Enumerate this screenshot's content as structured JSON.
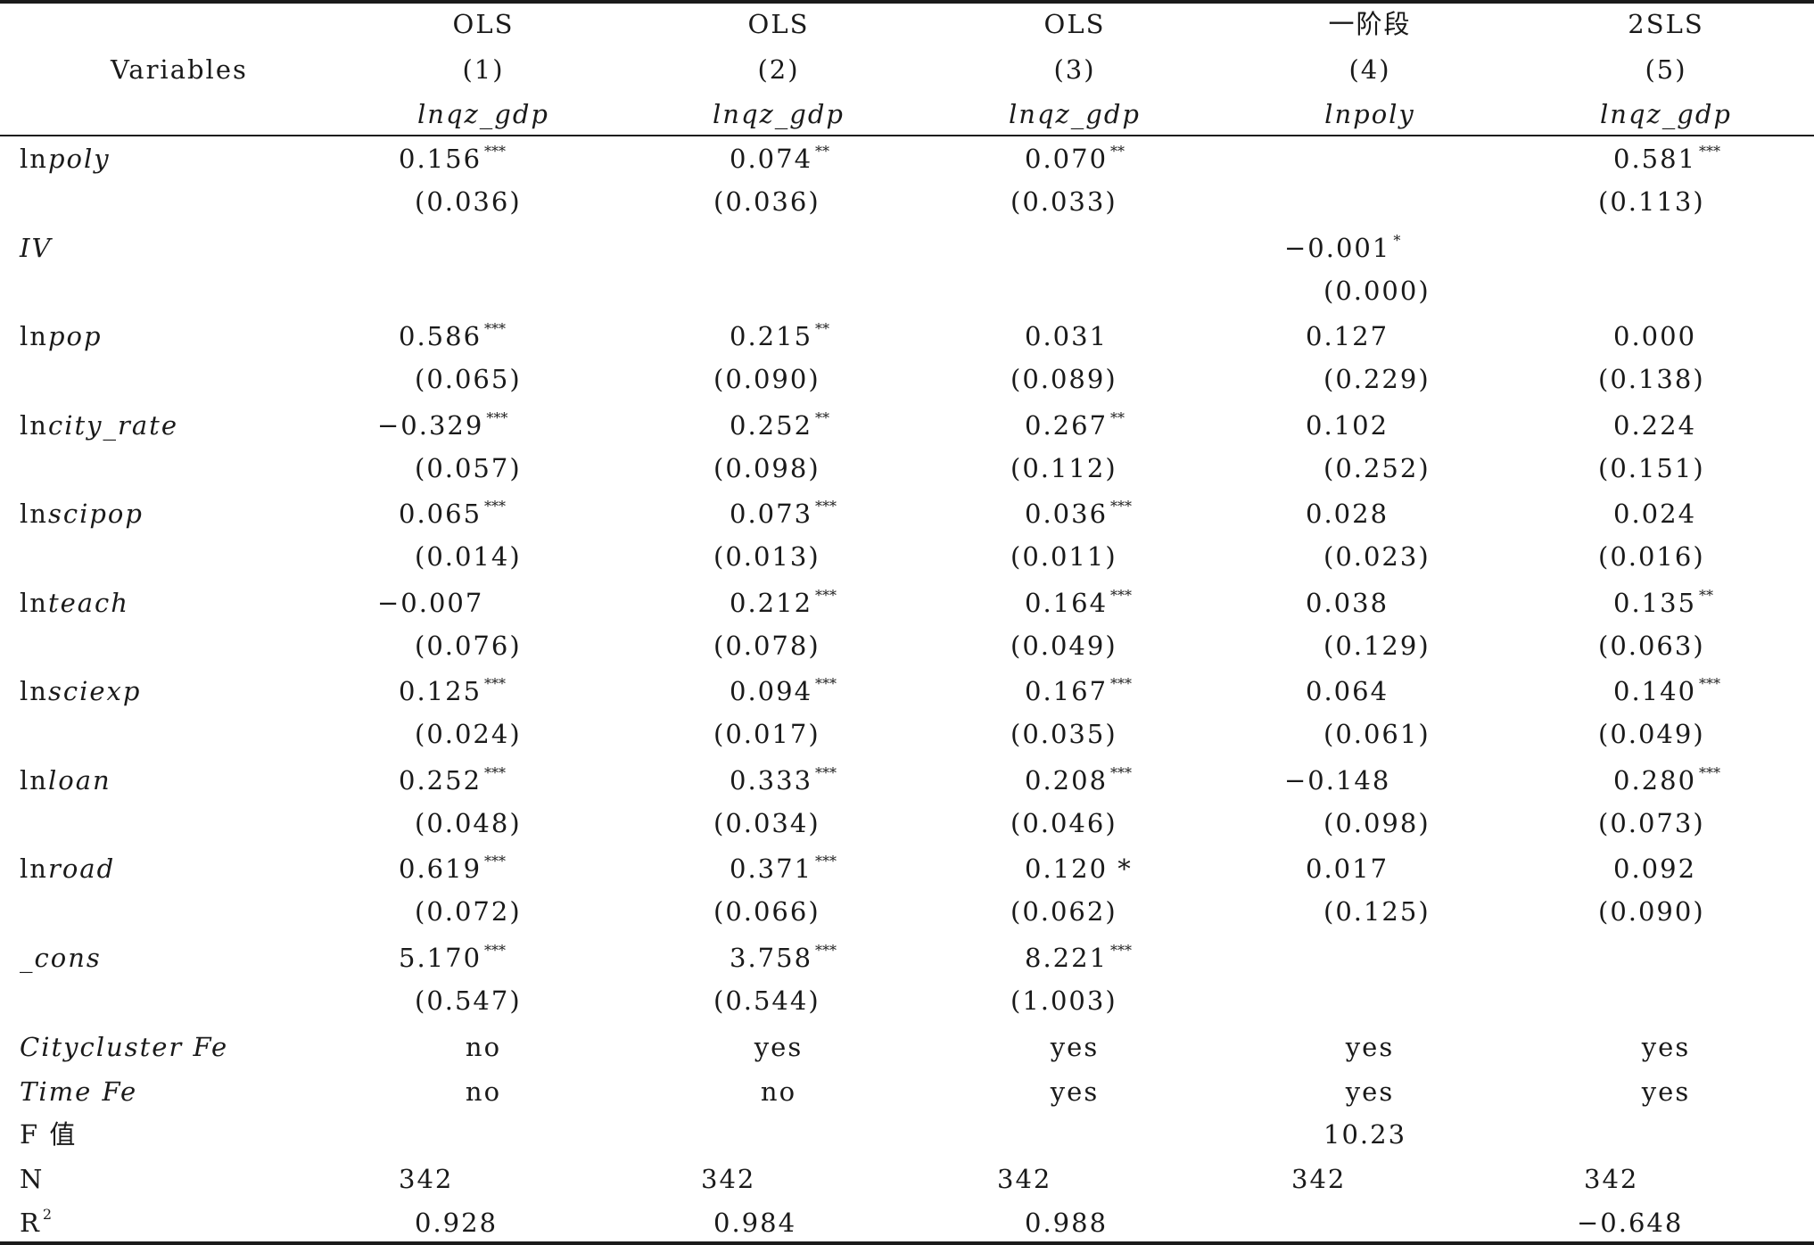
{
  "header": {
    "variables_label": "Variables",
    "columns": [
      {
        "method": "OLS",
        "number": "(1)",
        "dependent": "lnqz_gdp"
      },
      {
        "method": "OLS",
        "number": "(2)",
        "dependent": "lnqz_gdp"
      },
      {
        "method": "OLS",
        "number": "(3)",
        "dependent": "lnqz_gdp"
      },
      {
        "method": "一阶段",
        "number": "(4)",
        "dependent": "lnpoly"
      },
      {
        "method": "2SLS",
        "number": "(5)",
        "dependent": "lnqz_gdp"
      }
    ]
  },
  "rows": [
    {
      "ln": "ln",
      "name": "poly",
      "coef": [
        {
          "v": "0.156",
          "s": "***"
        },
        {
          "v": "0.074",
          "s": "**"
        },
        {
          "v": "0.070",
          "s": "**"
        },
        {
          "v": "",
          "s": ""
        },
        {
          "v": "0.581",
          "s": "***"
        }
      ],
      "se": [
        "(0.036)",
        "(0.036)",
        "(0.033)",
        "",
        "(0.113)"
      ]
    },
    {
      "ln": "",
      "name": "IV",
      "coef": [
        {
          "v": "",
          "s": ""
        },
        {
          "v": "",
          "s": ""
        },
        {
          "v": "",
          "s": ""
        },
        {
          "v": "−0.001",
          "s": "*"
        },
        {
          "v": "",
          "s": ""
        }
      ],
      "se": [
        "",
        "",
        "",
        "(0.000)",
        ""
      ]
    },
    {
      "ln": "ln",
      "name": "pop",
      "coef": [
        {
          "v": "0.586",
          "s": "***"
        },
        {
          "v": "0.215",
          "s": "**"
        },
        {
          "v": "0.031",
          "s": ""
        },
        {
          "v": "0.127",
          "s": ""
        },
        {
          "v": "0.000",
          "s": ""
        }
      ],
      "se": [
        "(0.065)",
        "(0.090)",
        "(0.089)",
        "(0.229)",
        "(0.138)"
      ]
    },
    {
      "ln": "ln",
      "name": "city_rate",
      "coef": [
        {
          "v": "−0.329",
          "s": "***"
        },
        {
          "v": "0.252",
          "s": "**"
        },
        {
          "v": "0.267",
          "s": "**"
        },
        {
          "v": "0.102",
          "s": ""
        },
        {
          "v": "0.224",
          "s": ""
        }
      ],
      "se": [
        "(0.057)",
        "(0.098)",
        "(0.112)",
        "(0.252)",
        "(0.151)"
      ]
    },
    {
      "ln": "ln",
      "name": "scipop",
      "coef": [
        {
          "v": "0.065",
          "s": "***"
        },
        {
          "v": "0.073",
          "s": "***"
        },
        {
          "v": "0.036",
          "s": "***"
        },
        {
          "v": "0.028",
          "s": ""
        },
        {
          "v": "0.024",
          "s": ""
        }
      ],
      "se": [
        "(0.014)",
        "(0.013)",
        "(0.011)",
        "(0.023)",
        "(0.016)"
      ]
    },
    {
      "ln": "ln",
      "name": "teach",
      "coef": [
        {
          "v": "−0.007",
          "s": ""
        },
        {
          "v": "0.212",
          "s": "***"
        },
        {
          "v": "0.164",
          "s": "***"
        },
        {
          "v": "0.038",
          "s": ""
        },
        {
          "v": "0.135",
          "s": "**"
        }
      ],
      "se": [
        "(0.076)",
        "(0.078)",
        "(0.049)",
        "(0.129)",
        "(0.063)"
      ]
    },
    {
      "ln": "ln",
      "name": "sciexp",
      "coef": [
        {
          "v": "0.125",
          "s": "***"
        },
        {
          "v": "0.094",
          "s": "***"
        },
        {
          "v": "0.167",
          "s": "***"
        },
        {
          "v": "0.064",
          "s": ""
        },
        {
          "v": "0.140",
          "s": "***"
        }
      ],
      "se": [
        "(0.024)",
        "(0.017)",
        "(0.035)",
        "(0.061)",
        "(0.049)"
      ]
    },
    {
      "ln": "ln",
      "name": "loan",
      "coef": [
        {
          "v": "0.252",
          "s": "***"
        },
        {
          "v": "0.333",
          "s": "***"
        },
        {
          "v": "0.208",
          "s": "***"
        },
        {
          "v": "−0.148",
          "s": ""
        },
        {
          "v": "0.280",
          "s": "***"
        }
      ],
      "se": [
        "(0.048)",
        "(0.034)",
        "(0.046)",
        "(0.098)",
        "(0.073)"
      ]
    },
    {
      "ln": "ln",
      "name": "road",
      "coef": [
        {
          "v": "0.619",
          "s": "***"
        },
        {
          "v": "0.371",
          "s": "***"
        },
        {
          "v": "0.120 *",
          "s": ""
        },
        {
          "v": "0.017",
          "s": ""
        },
        {
          "v": "0.092",
          "s": ""
        }
      ],
      "se": [
        "(0.072)",
        "(0.066)",
        "(0.062)",
        "(0.125)",
        "(0.090)"
      ]
    },
    {
      "ln": "",
      "name": "_cons",
      "coef": [
        {
          "v": "5.170",
          "s": "***"
        },
        {
          "v": "3.758",
          "s": "***"
        },
        {
          "v": "8.221",
          "s": "***"
        },
        {
          "v": "",
          "s": ""
        },
        {
          "v": "",
          "s": ""
        }
      ],
      "se": [
        "(0.547)",
        "(0.544)",
        "(1.003)",
        "",
        ""
      ]
    }
  ],
  "footer": {
    "citycluster_fe": {
      "label": "Citycluster Fe",
      "values": [
        "no",
        "yes",
        "yes",
        "yes",
        "yes"
      ]
    },
    "time_fe": {
      "label": "Time Fe",
      "values": [
        "no",
        "no",
        "yes",
        "yes",
        "yes"
      ]
    },
    "f_value": {
      "label": "F 值",
      "values": [
        "",
        "",
        "",
        "10.23",
        ""
      ]
    },
    "n": {
      "label": "N",
      "values": [
        "342",
        "342",
        "342",
        "342",
        "342"
      ]
    },
    "r2": {
      "label": "R",
      "label_sup": "2",
      "values": [
        "0.928",
        "0.984",
        "0.988",
        "",
        "−0.648"
      ]
    }
  }
}
